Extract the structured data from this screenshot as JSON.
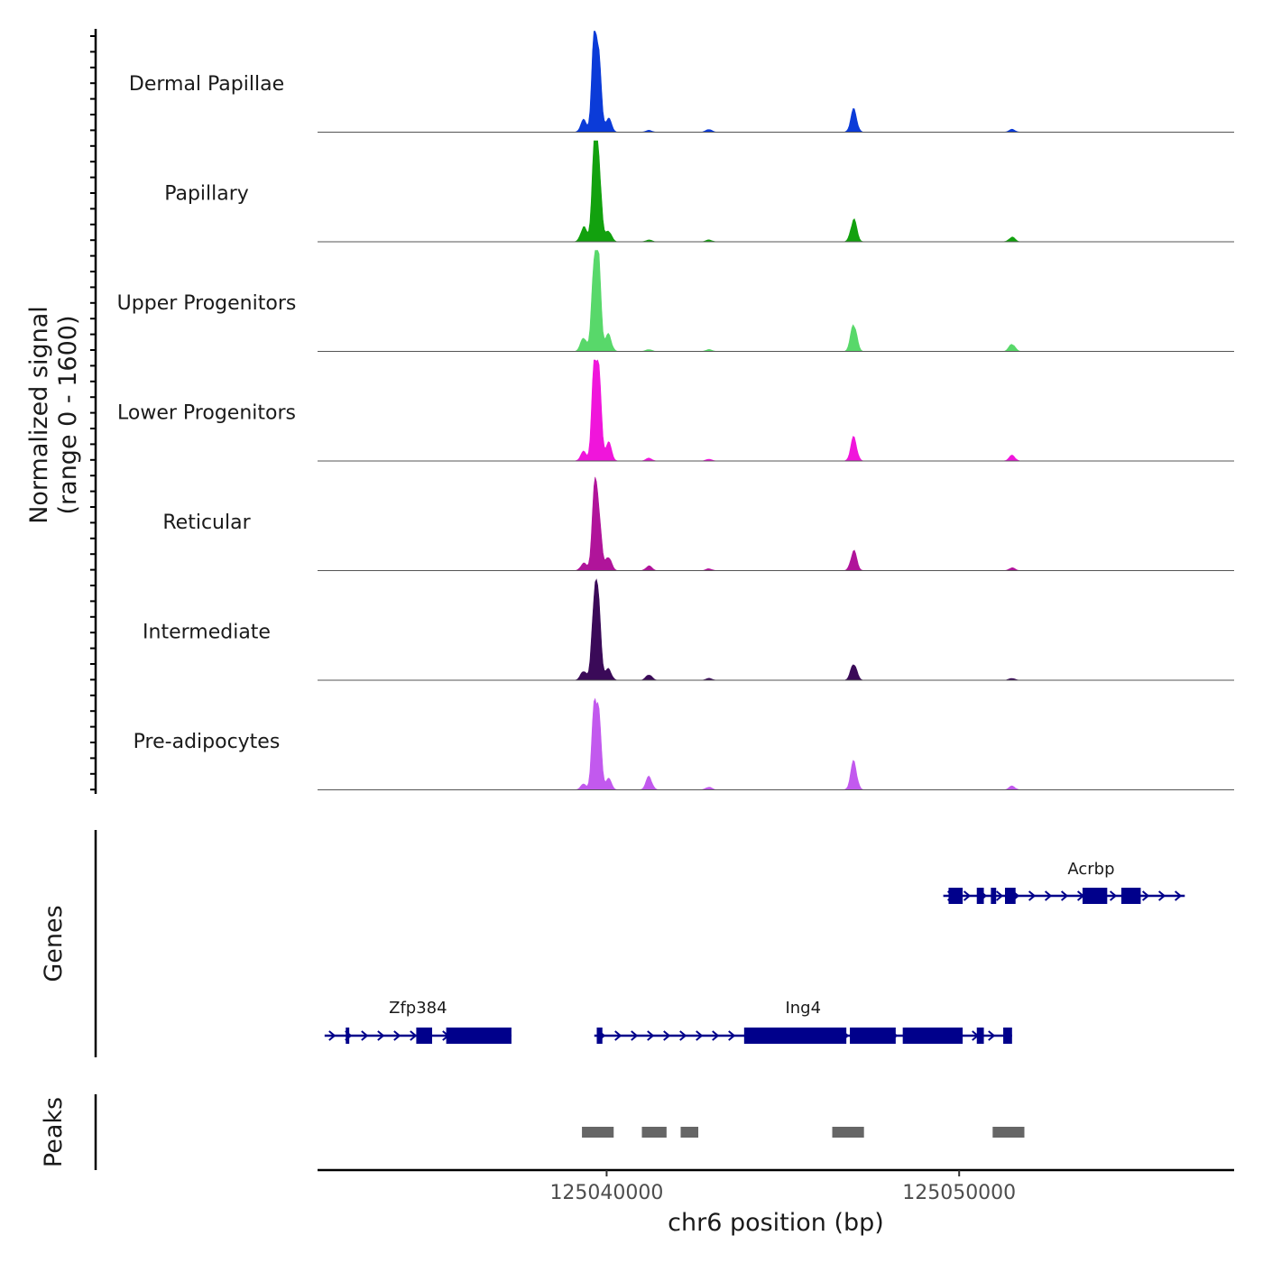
{
  "chart_data": {
    "type": "area",
    "y_axis_title_line1": "Normalized signal",
    "y_axis_title_line2": "(range 0 - 1600)",
    "y_range": [
      0,
      1600
    ],
    "x_axis_title": "chr6 position (bp)",
    "x_range": [
      125031800,
      125057800
    ],
    "x_ticks": [
      125040000,
      125050000
    ],
    "x_tick_labels": [
      "125040000",
      "125050000"
    ],
    "tracks": [
      {
        "name": "Dermal Papillae",
        "color": "#0B3BD8",
        "peaks": [
          [
            125039350,
            0.13
          ],
          [
            125039650,
            1.0
          ],
          [
            125039780,
            0.72
          ],
          [
            125040050,
            0.15
          ],
          [
            125047010,
            0.24
          ],
          [
            125041200,
            0.02
          ],
          [
            125042900,
            0.03
          ],
          [
            125051500,
            0.03
          ]
        ]
      },
      {
        "name": "Papillary",
        "color": "#12A10E",
        "peaks": [
          [
            125039350,
            0.16
          ],
          [
            125039650,
            0.98
          ],
          [
            125039780,
            0.82
          ],
          [
            125040050,
            0.12
          ],
          [
            125047010,
            0.24
          ],
          [
            125041200,
            0.02
          ],
          [
            125042900,
            0.02
          ],
          [
            125051500,
            0.05
          ]
        ]
      },
      {
        "name": "Upper Progenitors",
        "color": "#58D86A",
        "peaks": [
          [
            125039350,
            0.15
          ],
          [
            125039650,
            1.0
          ],
          [
            125039780,
            0.82
          ],
          [
            125040050,
            0.18
          ],
          [
            125047010,
            0.3
          ],
          [
            125041200,
            0.02
          ],
          [
            125042900,
            0.02
          ],
          [
            125051500,
            0.08
          ]
        ]
      },
      {
        "name": "Lower Progenitors",
        "color": "#F015DB",
        "peaks": [
          [
            125039350,
            0.1
          ],
          [
            125039650,
            0.98
          ],
          [
            125039780,
            0.85
          ],
          [
            125040050,
            0.2
          ],
          [
            125047010,
            0.25
          ],
          [
            125041200,
            0.03
          ],
          [
            125042900,
            0.02
          ],
          [
            125051500,
            0.06
          ]
        ]
      },
      {
        "name": "Reticular",
        "color": "#B0149A",
        "peaks": [
          [
            125039350,
            0.08
          ],
          [
            125039650,
            0.78
          ],
          [
            125039780,
            0.6
          ],
          [
            125040050,
            0.15
          ],
          [
            125047010,
            0.21
          ],
          [
            125041200,
            0.05
          ],
          [
            125042900,
            0.02
          ],
          [
            125051500,
            0.03
          ]
        ]
      },
      {
        "name": "Intermediate",
        "color": "#3A0A58",
        "peaks": [
          [
            125039350,
            0.1
          ],
          [
            125039650,
            0.88
          ],
          [
            125039780,
            0.68
          ],
          [
            125040050,
            0.12
          ],
          [
            125047010,
            0.18
          ],
          [
            125041200,
            0.06
          ],
          [
            125042900,
            0.02
          ],
          [
            125051500,
            0.02
          ]
        ]
      },
      {
        "name": "Pre-adipocytes",
        "color": "#C259EE",
        "peaks": [
          [
            125039350,
            0.06
          ],
          [
            125039650,
            0.85
          ],
          [
            125039780,
            0.7
          ],
          [
            125040050,
            0.12
          ],
          [
            125047010,
            0.3
          ],
          [
            125041200,
            0.14
          ],
          [
            125042900,
            0.03
          ],
          [
            125051500,
            0.04
          ]
        ]
      }
    ],
    "genes_panel_title": "Genes",
    "gene_color": "#00008B",
    "genes": [
      {
        "name": "Acrbp",
        "start": 125049550,
        "end": 125056400,
        "row": 0,
        "exons": [
          [
            125049700,
            125050100
          ],
          [
            125050500,
            125050700
          ],
          [
            125050900,
            125051050
          ],
          [
            125051300,
            125051600
          ],
          [
            125053500,
            125054200
          ],
          [
            125054600,
            125055150
          ]
        ]
      },
      {
        "name": "Zfp384",
        "start": 125032000,
        "end": 125037300,
        "row": 1,
        "exons": [
          [
            125032600,
            125032700
          ],
          [
            125034600,
            125035050
          ],
          [
            125035450,
            125037300
          ]
        ]
      },
      {
        "name": "Ing4",
        "start": 125039650,
        "end": 125051500,
        "row": 1,
        "exons": [
          [
            125039720,
            125039880
          ],
          [
            125043900,
            125046800
          ],
          [
            125046900,
            125048200
          ],
          [
            125048400,
            125050100
          ],
          [
            125050500,
            125050700
          ],
          [
            125051250,
            125051500
          ]
        ]
      }
    ],
    "peaks_panel_title": "Peaks",
    "peak_color": "#666666",
    "peak_regions": [
      [
        125039300,
        125040200
      ],
      [
        125041000,
        125041700
      ],
      [
        125042100,
        125042600
      ],
      [
        125046400,
        125047300
      ],
      [
        125050950,
        125051850
      ]
    ]
  }
}
